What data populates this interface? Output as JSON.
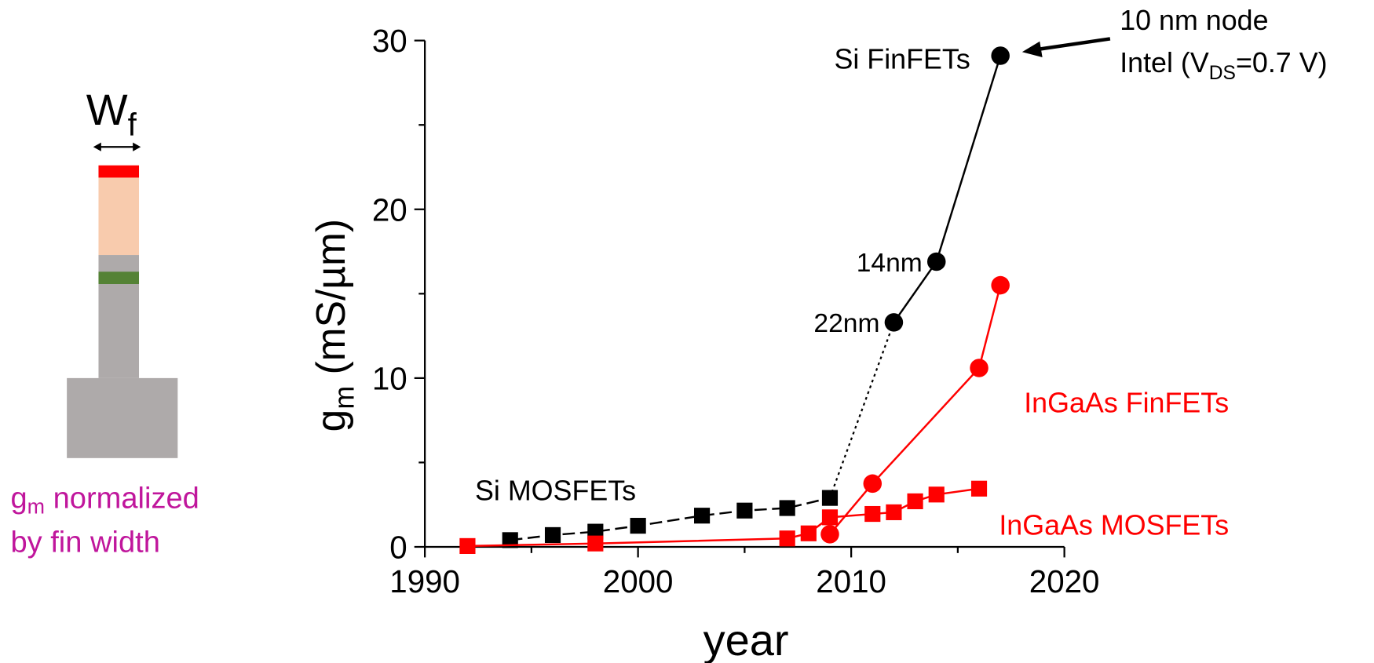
{
  "diagram": {
    "width_label": {
      "main": "W",
      "sub": "f"
    },
    "caption": {
      "main": "g",
      "sub": "m",
      "rest": " normalized",
      "line2": "by fin width"
    }
  },
  "chart_data": {
    "type": "line",
    "x_label": "year",
    "y_label": {
      "main": "g",
      "sub": "m",
      "rest": " (mS/µm)"
    },
    "xlim": [
      1990,
      2020
    ],
    "xticks": [
      1990,
      2000,
      2010,
      2020
    ],
    "xminorticks": [
      1995,
      2005,
      2015
    ],
    "ylim": [
      0,
      30
    ],
    "yticks": [
      0,
      10,
      20,
      30
    ],
    "yminorticks": [
      5,
      15,
      25
    ],
    "series": [
      {
        "name": "Si MOSFETs",
        "color": "#000000",
        "marker": "square",
        "dash": "dashed",
        "x": [
          1994,
          1996,
          1998,
          2000,
          2003,
          2005,
          2007,
          2009
        ],
        "values": [
          0.4,
          0.7,
          0.9,
          1.25,
          1.85,
          2.15,
          2.3,
          2.9
        ]
      },
      {
        "name": "Si FinFETs",
        "color": "#000000",
        "marker": "circle",
        "dash": "solid",
        "x": [
          2012,
          2014,
          2017
        ],
        "values": [
          13.3,
          16.9,
          29.1
        ],
        "point_labels": [
          "22nm",
          "14nm",
          null
        ]
      },
      {
        "name": "InGaAs FinFETs",
        "color": "#ff0000",
        "marker": "circle",
        "dash": "solid",
        "x": [
          2009,
          2011,
          2016,
          2017
        ],
        "values": [
          0.75,
          3.75,
          10.6,
          15.5
        ]
      },
      {
        "name": "InGaAs MOSFETs",
        "color": "#ff0000",
        "marker": "square",
        "dash": "solid",
        "x": [
          1992,
          1998,
          2007,
          2008,
          2009,
          2011,
          2012,
          2013,
          2014,
          2016
        ],
        "values": [
          0.05,
          0.2,
          0.5,
          0.8,
          1.75,
          1.95,
          2.05,
          2.7,
          3.1,
          3.45
        ]
      }
    ],
    "annotation": {
      "line1": "10 nm node",
      "line2": {
        "prefix": "Intel (V",
        "sub": "DS",
        "suffix": "=0.7 V)"
      }
    }
  }
}
